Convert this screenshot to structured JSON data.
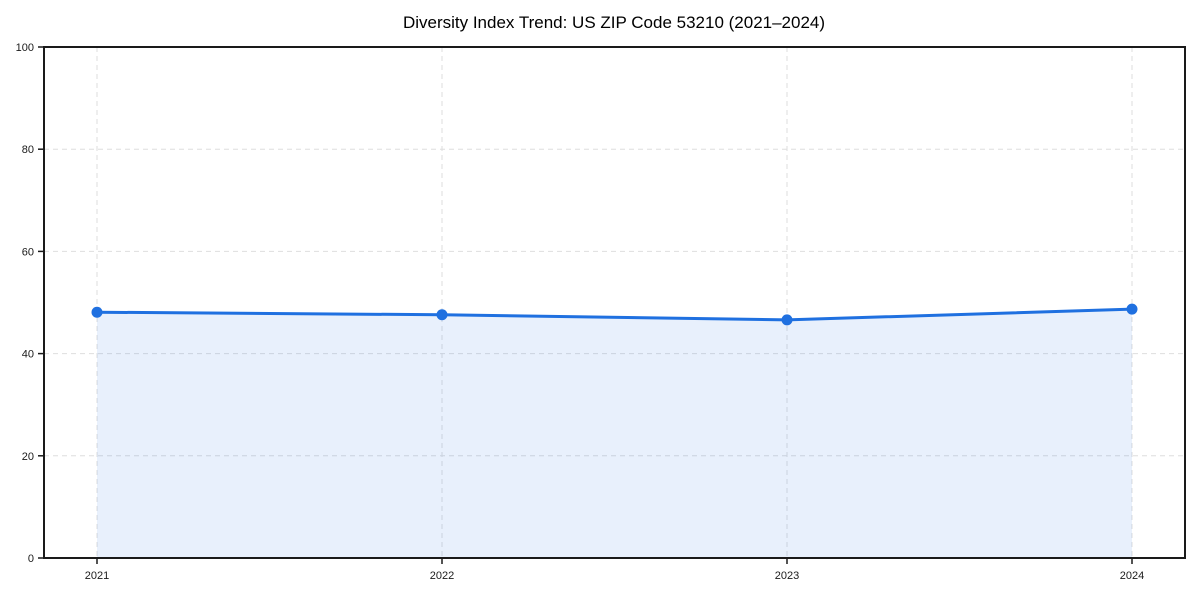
{
  "chart_data": {
    "type": "line",
    "title": "Diversity Index Trend: US ZIP Code 53210 (2021–2024)",
    "categories": [
      "2021",
      "2022",
      "2023",
      "2024"
    ],
    "values": [
      48.1,
      47.6,
      46.6,
      48.7
    ],
    "xlabel": "",
    "ylabel": "",
    "ylim": [
      0,
      100
    ],
    "yticks": [
      0,
      20,
      40,
      60,
      80,
      100
    ],
    "grid": true,
    "grid_style": "dashed",
    "legend": "none",
    "marker": "circle",
    "area_fill": true,
    "colors": {
      "line": "#1f70e0",
      "marker": "#1f70e0",
      "area": "rgba(31, 112, 224, 0.10)",
      "grid": "#dedede",
      "spine": "#1a1a1a",
      "background": "#ffffff",
      "title_text": "#000000",
      "tick_text": "#1a1a1a"
    }
  }
}
